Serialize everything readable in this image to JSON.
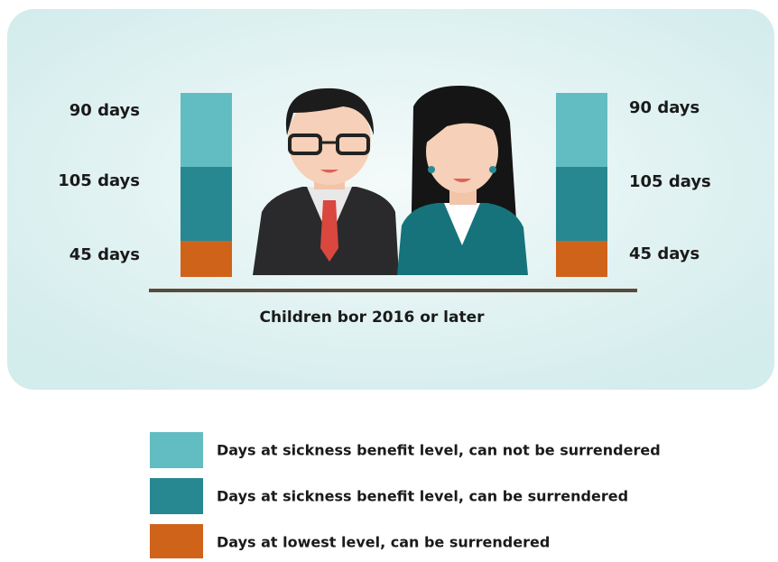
{
  "left": {
    "labels": [
      "90 days",
      "105 days",
      "45 days"
    ]
  },
  "right": {
    "labels": [
      "90 days",
      "105 days",
      "45 days"
    ]
  },
  "caption": "Children bor 2016 or later",
  "legend": [
    {
      "label": "Days at sickness benefit level, can not be surrendered",
      "color": "#62bdc2"
    },
    {
      "label": "Days at sickness benefit level, can be surrendered",
      "color": "#278891"
    },
    {
      "label": "Days at lowest level, can be surrendered",
      "color": "#d0631a"
    }
  ]
}
